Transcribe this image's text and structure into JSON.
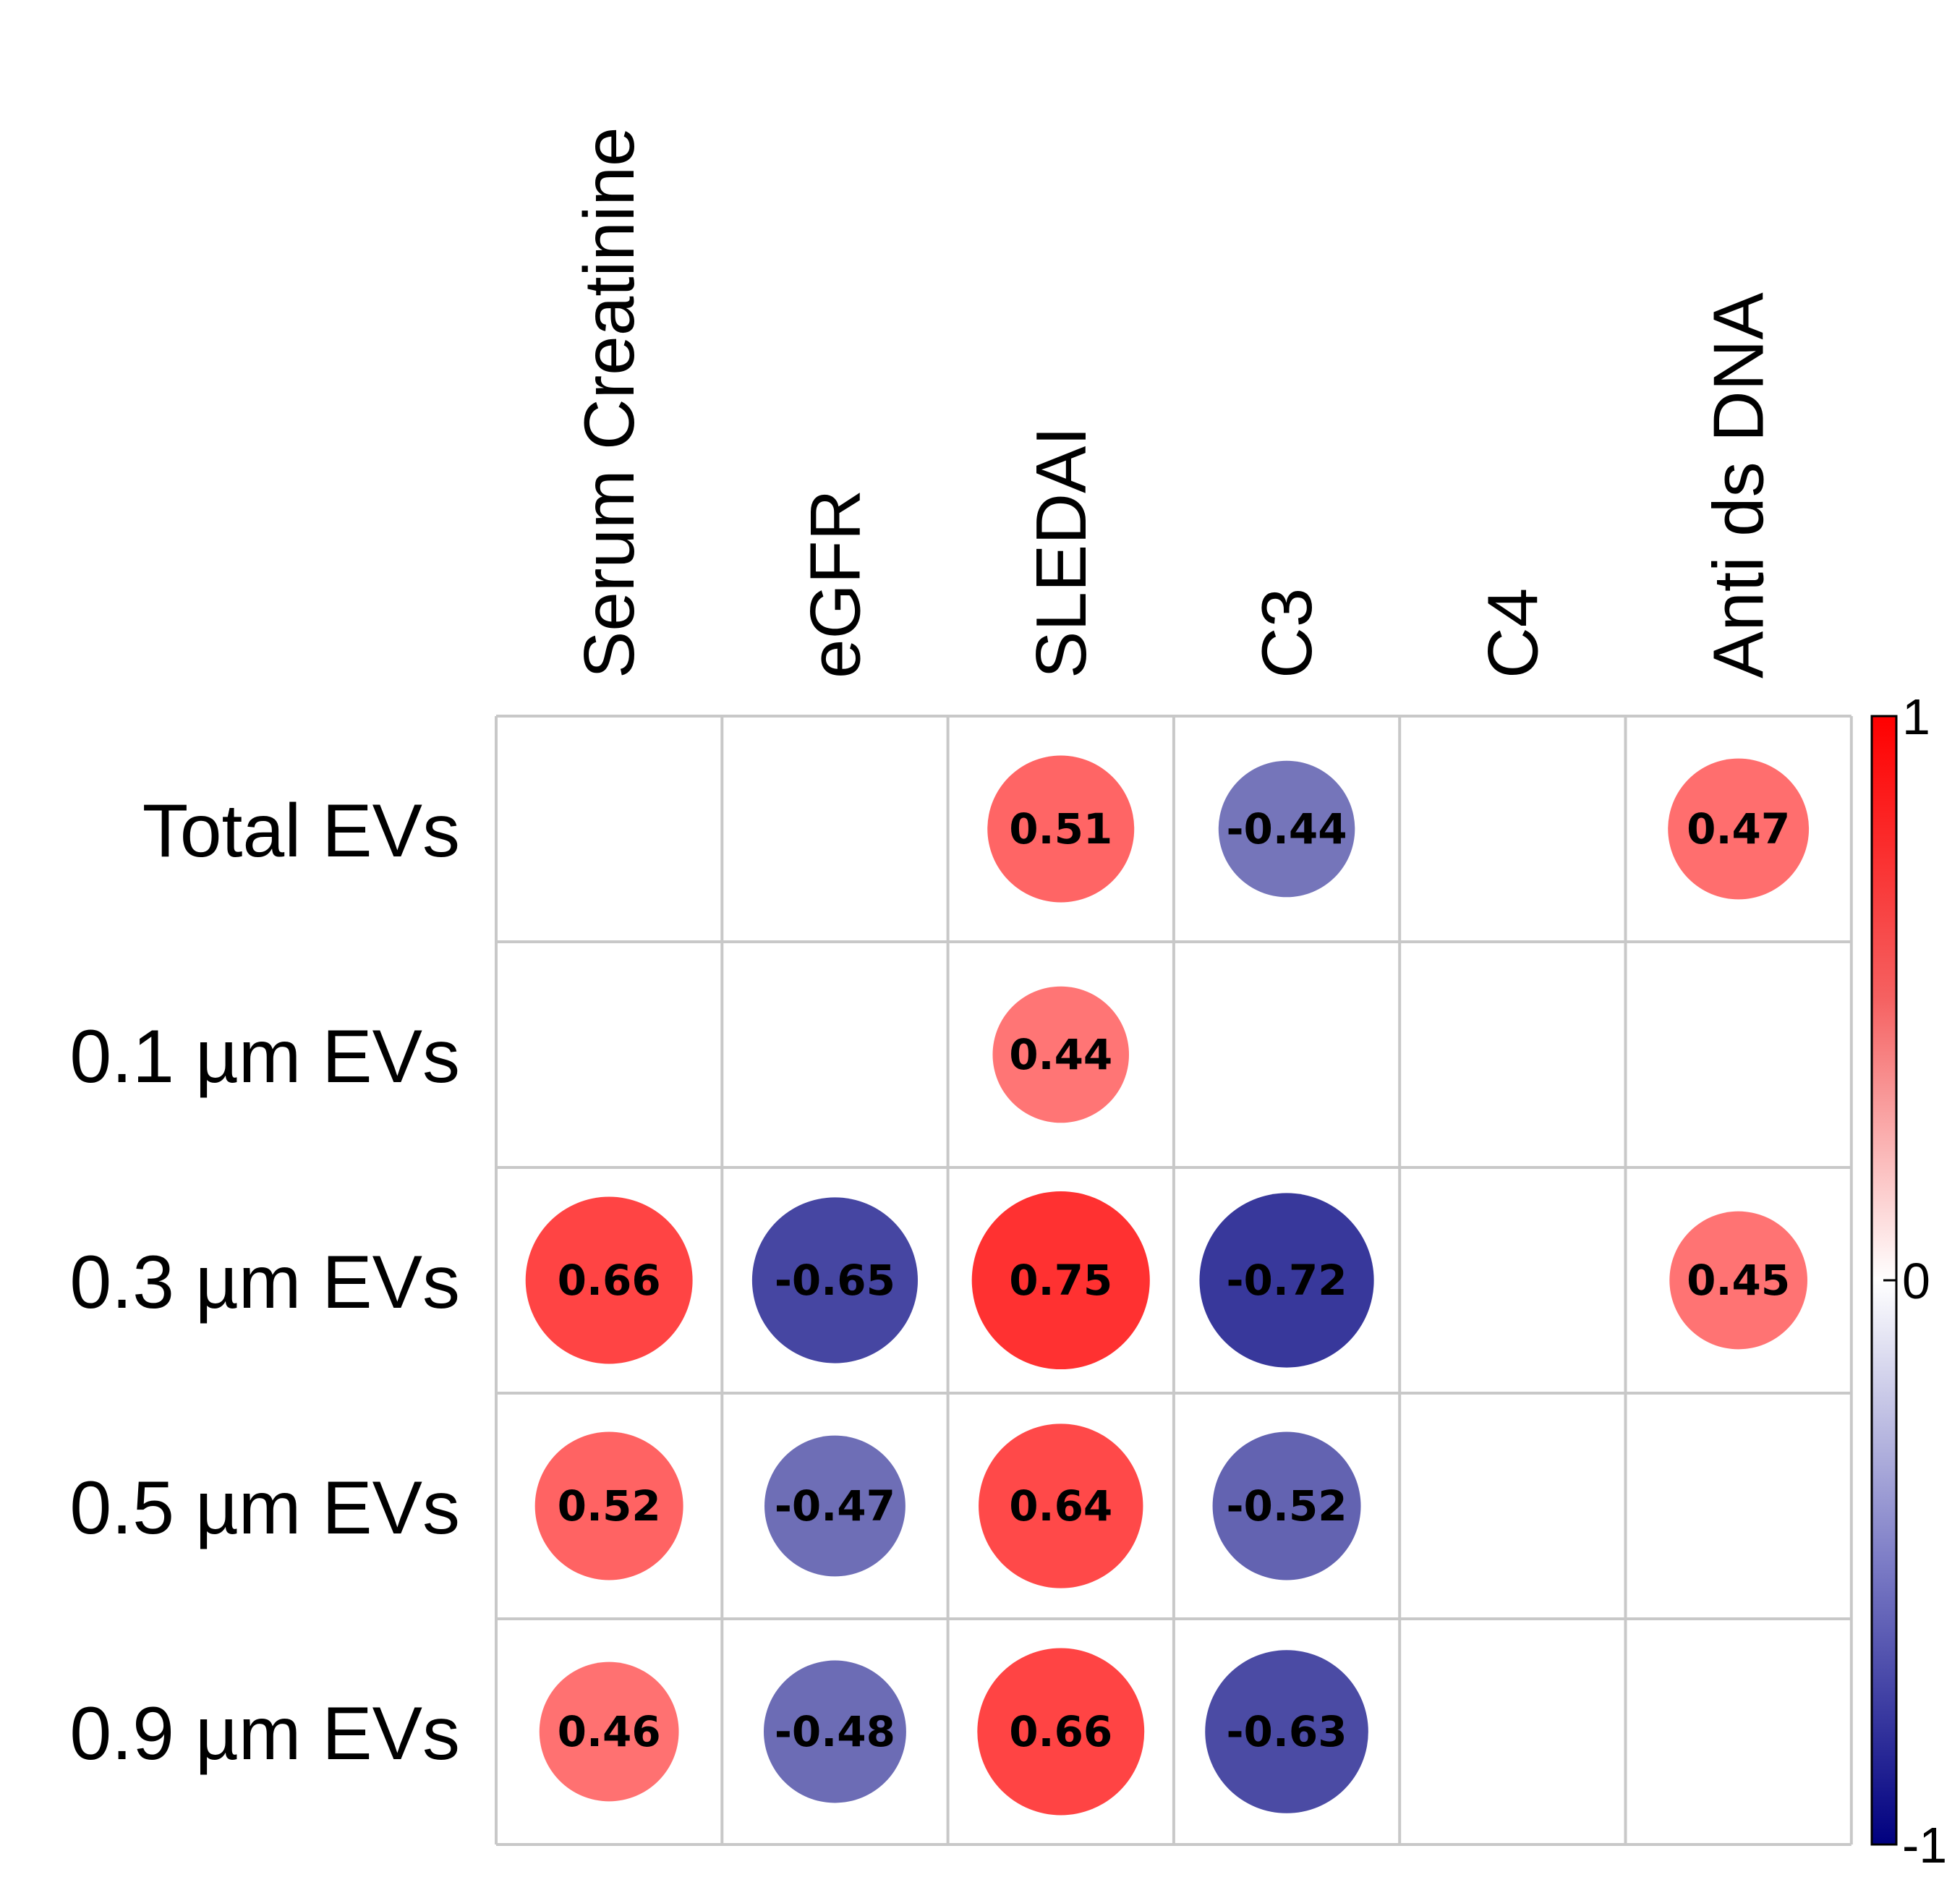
{
  "chart_data": {
    "type": "correlation-matrix",
    "columns": [
      "Serum Creatinine",
      "eGFR",
      "SLEDAI",
      "C3",
      "C4",
      "Anti ds DNA"
    ],
    "rows": [
      "Total EVs",
      "0.1 µm EVs",
      "0.3 µm EVs",
      "0.5 µm EVs",
      "0.9 µm EVs"
    ],
    "values": [
      [
        null,
        null,
        0.51,
        -0.44,
        null,
        0.47
      ],
      [
        null,
        null,
        0.44,
        null,
        null,
        null
      ],
      [
        0.66,
        -0.65,
        0.75,
        -0.72,
        null,
        0.45
      ],
      [
        0.52,
        -0.47,
        0.64,
        -0.52,
        null,
        null
      ],
      [
        0.46,
        -0.48,
        0.66,
        -0.63,
        null,
        null
      ]
    ],
    "color_scale": {
      "range": [
        -1,
        1
      ],
      "ticks": [
        "1",
        "0",
        "-1"
      ],
      "low_color": "#00007F",
      "mid_color": "#FFFFFF",
      "high_color": "#FF0000"
    },
    "legend_position": "right",
    "grid": true
  }
}
